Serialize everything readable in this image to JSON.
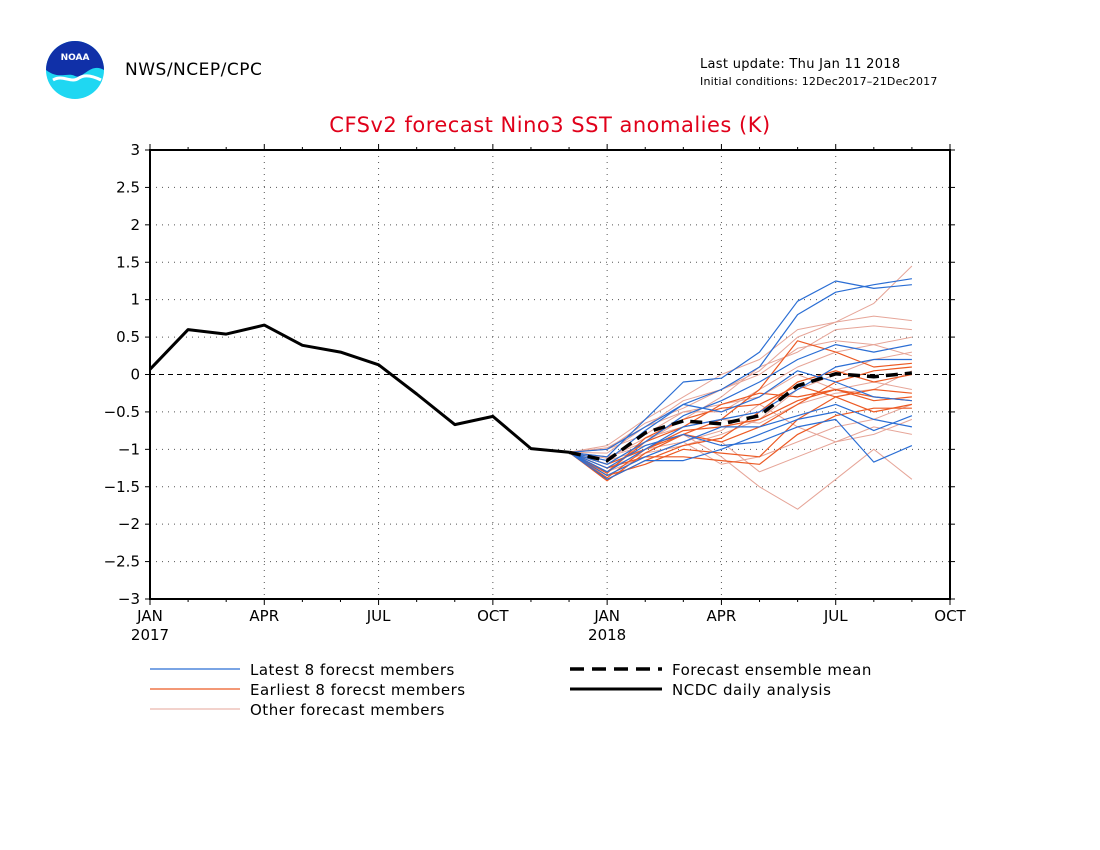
{
  "header": {
    "agency": "NWS/NCEP/CPC",
    "last_update": "Last update: Thu Jan 11 2018",
    "initial_conditions": "Initial conditions: 12Dec2017–21Dec2017",
    "logo_text": "NOAA"
  },
  "colors": {
    "title": "#e0001a",
    "latest_members": "#2b6ed4",
    "earliest_members": "#ec5a24",
    "other_members": "#e6a598",
    "mean": "#000000",
    "observed": "#000000"
  },
  "chart_data": {
    "type": "line",
    "title": "CFSv2 forecast Nino3 SST anomalies (K)",
    "xlabel": "",
    "ylabel": "",
    "ylim": [
      -3,
      3
    ],
    "yticks": [
      3,
      2.5,
      2,
      1.5,
      1,
      0.5,
      0,
      -0.5,
      -1,
      -1.5,
      -2,
      -2.5,
      -3
    ],
    "ytick_labels": [
      "3",
      "2.5",
      "2",
      "1.5",
      "1",
      "0.5",
      "0",
      "−0.5",
      "−1",
      "−1.5",
      "−2",
      "−2.5",
      "−3"
    ],
    "xlim": [
      "2017-01",
      "2018-10"
    ],
    "xticks": [
      {
        "date": "2017-01",
        "label": "JAN",
        "sublabel": "2017"
      },
      {
        "date": "2017-04",
        "label": "APR",
        "sublabel": ""
      },
      {
        "date": "2017-07",
        "label": "JUL",
        "sublabel": ""
      },
      {
        "date": "2017-10",
        "label": "OCT",
        "sublabel": ""
      },
      {
        "date": "2018-01",
        "label": "JAN",
        "sublabel": "2018"
      },
      {
        "date": "2018-04",
        "label": "APR",
        "sublabel": ""
      },
      {
        "date": "2018-07",
        "label": "JUL",
        "sublabel": ""
      },
      {
        "date": "2018-10",
        "label": "OCT",
        "sublabel": ""
      }
    ],
    "grid": true,
    "reference_line": 0,
    "observed": {
      "name": "NCDC daily analysis",
      "x": [
        "2017-01",
        "2017-02",
        "2017-03",
        "2017-04",
        "2017-05",
        "2017-06",
        "2017-07",
        "2017-08",
        "2017-09",
        "2017-10",
        "2017-11",
        "2017-12"
      ],
      "values": [
        0.07,
        0.6,
        0.54,
        0.66,
        0.39,
        0.3,
        0.13,
        -0.26,
        -0.67,
        -0.56,
        -0.99,
        -1.04
      ]
    },
    "mean": {
      "name": "Forecast ensemble mean",
      "x": [
        "2017-12",
        "2018-01",
        "2018-02",
        "2018-03",
        "2018-04",
        "2018-05",
        "2018-06",
        "2018-07",
        "2018-08",
        "2018-09"
      ],
      "values": [
        -1.04,
        -1.15,
        -0.78,
        -0.62,
        -0.66,
        -0.55,
        -0.15,
        0.01,
        -0.03,
        0.02
      ]
    },
    "members_x": [
      "2017-12",
      "2018-01",
      "2018-02",
      "2018-03",
      "2018-04",
      "2018-05",
      "2018-06",
      "2018-07",
      "2018-08",
      "2018-09"
    ],
    "latest_members": {
      "name": "Latest 8 forecst members",
      "series": [
        [
          -1.04,
          -1.1,
          -0.6,
          -0.1,
          -0.05,
          0.3,
          0.98,
          1.25,
          1.15,
          1.2
        ],
        [
          -1.04,
          -1.0,
          -0.7,
          -0.4,
          -0.2,
          0.1,
          0.8,
          1.1,
          1.2,
          1.28
        ],
        [
          -1.04,
          -1.2,
          -0.9,
          -0.55,
          -0.35,
          -0.1,
          0.2,
          0.4,
          0.3,
          0.4
        ],
        [
          -1.04,
          -1.3,
          -1.0,
          -0.7,
          -0.6,
          -0.5,
          -0.2,
          0.1,
          0.2,
          0.2
        ],
        [
          -1.04,
          -1.15,
          -0.75,
          -0.4,
          -0.5,
          -0.3,
          0.05,
          -0.1,
          -0.3,
          -0.35
        ],
        [
          -1.04,
          -1.4,
          -1.15,
          -1.15,
          -1.0,
          -0.8,
          -0.6,
          -0.5,
          -0.75,
          -0.55
        ],
        [
          -1.04,
          -1.25,
          -0.95,
          -0.8,
          -0.95,
          -0.9,
          -0.7,
          -0.6,
          -1.17,
          -0.95
        ],
        [
          -1.04,
          -1.35,
          -1.1,
          -0.9,
          -0.7,
          -0.7,
          -0.55,
          -0.4,
          -0.6,
          -0.7
        ]
      ]
    },
    "earliest_members": {
      "name": "Earliest 8 forecst members",
      "series": [
        [
          -1.04,
          -1.42,
          -1.05,
          -0.8,
          -0.6,
          -0.2,
          0.45,
          0.3,
          0.1,
          0.15
        ],
        [
          -1.04,
          -1.4,
          -1.15,
          -0.95,
          -0.85,
          -0.5,
          -0.1,
          0.05,
          -0.1,
          0.0
        ],
        [
          -1.04,
          -1.35,
          -1.2,
          -1.0,
          -1.05,
          -1.1,
          -0.6,
          -0.3,
          -0.2,
          -0.25
        ],
        [
          -1.04,
          -1.3,
          -0.9,
          -0.7,
          -0.4,
          -0.25,
          -0.3,
          -0.2,
          -0.35,
          -0.3
        ],
        [
          -1.04,
          -1.25,
          -1.1,
          -1.1,
          -1.15,
          -1.2,
          -0.8,
          -0.55,
          -0.45,
          -0.45
        ],
        [
          -1.04,
          -1.38,
          -1.0,
          -0.8,
          -0.9,
          -0.7,
          -0.4,
          -0.1,
          0.05,
          0.1
        ],
        [
          -1.04,
          -1.2,
          -1.0,
          -0.75,
          -0.7,
          -0.6,
          -0.35,
          -0.2,
          -0.3,
          -0.35
        ],
        [
          -1.04,
          -1.32,
          -0.85,
          -0.6,
          -0.45,
          -0.4,
          -0.15,
          -0.3,
          -0.5,
          -0.4
        ]
      ]
    },
    "other_members": {
      "name": "Other forecast members",
      "series": [
        [
          -1.04,
          -0.95,
          -0.6,
          -0.3,
          0.0,
          0.2,
          0.6,
          0.7,
          0.95,
          1.45
        ],
        [
          -1.04,
          -1.05,
          -0.7,
          -0.35,
          -0.2,
          0.05,
          0.5,
          0.7,
          0.78,
          0.72
        ],
        [
          -1.04,
          -1.1,
          -0.9,
          -0.6,
          -0.3,
          0.1,
          0.3,
          0.6,
          0.65,
          0.6
        ],
        [
          -1.04,
          -1.2,
          -1.0,
          -0.8,
          -1.1,
          -1.5,
          -1.8,
          -1.4,
          -1.0,
          -1.4
        ],
        [
          -1.04,
          -1.1,
          -0.95,
          -0.8,
          -0.9,
          -1.3,
          -1.1,
          -0.9,
          -0.7,
          -0.8
        ],
        [
          -1.04,
          -1.0,
          -0.8,
          -0.5,
          -0.5,
          -0.2,
          0.1,
          0.3,
          0.4,
          0.5
        ],
        [
          -1.04,
          -1.15,
          -1.0,
          -0.9,
          -1.2,
          -1.1,
          -0.9,
          -0.7,
          -0.6,
          -0.4
        ],
        [
          -1.04,
          -0.98,
          -0.7,
          -0.5,
          -0.4,
          -0.3,
          0.0,
          -0.2,
          -0.1,
          -0.2
        ],
        [
          -1.04,
          -1.25,
          -1.05,
          -0.95,
          -0.8,
          -0.6,
          -0.2,
          0.0,
          0.2,
          0.3
        ],
        [
          -1.04,
          -1.3,
          -1.1,
          -0.9,
          -0.75,
          -0.4,
          -0.7,
          -0.9,
          -0.8,
          -0.6
        ],
        [
          -1.04,
          -1.0,
          -0.65,
          -0.45,
          -0.2,
          0.0,
          0.35,
          0.45,
          0.4,
          0.25
        ],
        [
          -1.04,
          -1.12,
          -0.85,
          -0.7,
          -0.6,
          -0.65,
          -0.4,
          -0.25,
          -0.2,
          0.05
        ]
      ]
    },
    "legend": [
      {
        "key": "latest",
        "label": "Latest 8 forecst members",
        "style": "thin-blue"
      },
      {
        "key": "earliest",
        "label": "Earliest 8 forecst members",
        "style": "thin-orange"
      },
      {
        "key": "other",
        "label": "Other forecast members",
        "style": "thin-pink"
      },
      {
        "key": "mean",
        "label": "Forecast ensemble mean",
        "style": "thick-dashed"
      },
      {
        "key": "observed",
        "label": "NCDC daily analysis",
        "style": "thick-solid"
      }
    ],
    "legend_position": "bottom"
  }
}
